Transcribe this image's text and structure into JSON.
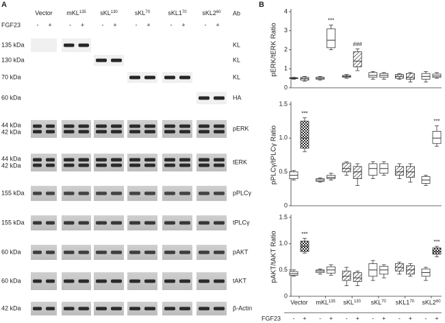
{
  "panel_a": {
    "letter": "A",
    "fgf23": "FGF23",
    "signs": [
      "-",
      "+"
    ],
    "ab": "Ab",
    "lanes": [
      {
        "base": "Vector"
      },
      {
        "base": "mKL",
        "sup": "135"
      },
      {
        "base": "sKL",
        "sup": "130"
      },
      {
        "base": "sKL",
        "sup": "70"
      },
      {
        "base": "sKL1",
        "sup": "70"
      },
      {
        "base": "sKL2",
        "sup": "60"
      }
    ],
    "rows": [
      {
        "kda": [
          "135 kDa"
        ],
        "antibody": "KL"
      },
      {
        "kda": [
          "130 kDa"
        ],
        "antibody": "KL"
      },
      {
        "kda": [
          "70 kDa"
        ],
        "antibody": "KL"
      },
      {
        "kda": [
          "60 kDa"
        ],
        "antibody": "HA"
      },
      {
        "kda": [
          "44 kDa",
          "42 kDa"
        ],
        "antibody": "pERK"
      },
      {
        "kda": [
          "44 kDa",
          "42 kDa"
        ],
        "antibody": "tERK"
      },
      {
        "kda": [
          "155 kDa"
        ],
        "antibody": "pPLCγ"
      },
      {
        "kda": [
          "155 kDa"
        ],
        "antibody": "tPLCγ"
      },
      {
        "kda": [
          "60 kDa"
        ],
        "antibody": "pAKT"
      },
      {
        "kda": [
          "60 kDa"
        ],
        "antibody": "tAKT"
      },
      {
        "kda": [
          "42 kDa"
        ],
        "antibody": "β-Actin"
      }
    ]
  },
  "panel_b": {
    "letter": "B"
  },
  "chart_data": [
    {
      "type": "box",
      "y_label": "pERK/tERK Ratio",
      "ylim": [
        0,
        4
      ],
      "yticks": [
        0,
        1,
        2,
        3,
        4
      ],
      "patterns": [
        [
          "plain",
          "hatch"
        ],
        [
          "plain",
          "plain"
        ],
        [
          "hatch",
          "hatch"
        ],
        [
          "plain",
          "plain"
        ],
        [
          "hatch",
          "hatch"
        ],
        [
          "plain",
          "plain"
        ]
      ],
      "series": [
        {
          "values": [
            [
              0.45,
              0.48,
              0.5,
              0.53,
              0.55
            ],
            [
              0.4,
              0.45,
              0.5,
              0.55,
              0.6
            ],
            [
              0.5,
              0.55,
              0.6,
              0.65,
              0.7
            ],
            [
              0.45,
              0.55,
              0.65,
              0.8,
              0.85
            ],
            [
              0.45,
              0.5,
              0.6,
              0.7,
              0.75
            ],
            [
              0.3,
              0.45,
              0.6,
              0.75,
              0.85
            ]
          ]
        },
        {
          "values": [
            [
              0.35,
              0.4,
              0.48,
              0.55,
              0.6
            ],
            [
              2.0,
              2.1,
              2.5,
              3.1,
              3.3
            ],
            [
              0.9,
              1.1,
              1.4,
              1.9,
              2.05
            ],
            [
              0.45,
              0.55,
              0.65,
              0.75,
              0.8
            ],
            [
              0.3,
              0.45,
              0.55,
              0.75,
              0.8
            ],
            [
              0.5,
              0.55,
              0.62,
              0.72,
              0.8
            ]
          ]
        }
      ],
      "annotations": [
        {
          "category": 1,
          "series": 1,
          "text": "***"
        },
        {
          "category": 2,
          "series": 1,
          "text": "###"
        }
      ]
    },
    {
      "type": "box",
      "y_label": "pPLCγ/tPLCγ Ratio",
      "ylim": [
        0,
        1.5
      ],
      "yticks": [
        0,
        0.5,
        {
          "value": 1,
          "label": "1.0"
        },
        1.5
      ],
      "patterns": [
        [
          "plain",
          "checker"
        ],
        [
          "plain",
          "plain"
        ],
        [
          "hatch",
          "hatch"
        ],
        [
          "plain",
          "plain"
        ],
        [
          "hatch",
          "hatch"
        ],
        [
          "plain",
          "plain"
        ]
      ],
      "series": [
        {
          "values": [
            [
              0.38,
              0.4,
              0.45,
              0.5,
              0.52
            ],
            [
              0.35,
              0.36,
              0.38,
              0.4,
              0.41
            ],
            [
              0.45,
              0.5,
              0.55,
              0.63,
              0.65
            ],
            [
              0.4,
              0.45,
              0.55,
              0.62,
              0.65
            ],
            [
              0.4,
              0.45,
              0.5,
              0.58,
              0.62
            ],
            [
              0.3,
              0.33,
              0.38,
              0.43,
              0.45
            ]
          ]
        },
        {
          "values": [
            [
              0.8,
              0.85,
              1.0,
              1.25,
              1.3
            ],
            [
              0.38,
              0.4,
              0.42,
              0.45,
              0.48
            ],
            [
              0.3,
              0.4,
              0.5,
              0.58,
              0.62
            ],
            [
              0.45,
              0.48,
              0.55,
              0.62,
              0.65
            ],
            [
              0.35,
              0.42,
              0.5,
              0.58,
              0.62
            ],
            [
              0.88,
              0.92,
              1.0,
              1.1,
              1.18
            ]
          ]
        }
      ],
      "annotations": [
        {
          "category": 0,
          "series": 1,
          "text": "***"
        },
        {
          "category": 5,
          "series": 1,
          "text": "***"
        }
      ]
    },
    {
      "type": "box",
      "y_label": "pAKT/tAKT Ratio",
      "ylim": [
        0,
        1.5
      ],
      "yticks": [
        0,
        0.5,
        {
          "value": 1,
          "label": "1.0"
        },
        1.5
      ],
      "patterns": [
        [
          "plain",
          "checker"
        ],
        [
          "plain",
          "plain"
        ],
        [
          "hatch",
          "hatch"
        ],
        [
          "plain",
          "plain"
        ],
        [
          "hatch",
          "hatch"
        ],
        [
          "plain",
          "checker"
        ]
      ],
      "categories": [
        {
          "base": "Vector"
        },
        {
          "base": "mKL",
          "sup": "135"
        },
        {
          "base": "sKL",
          "sup": "130"
        },
        {
          "base": "sKL",
          "sup": "70"
        },
        {
          "base": "sKL1",
          "sup": "70"
        },
        {
          "base": "sKL2",
          "sup": "60"
        }
      ],
      "x_label": "FGF23",
      "series": [
        {
          "name": "-",
          "values": [
            [
              0.38,
              0.4,
              0.43,
              0.47,
              0.5
            ],
            [
              0.42,
              0.45,
              0.48,
              0.5,
              0.52
            ],
            [
              0.2,
              0.3,
              0.38,
              0.48,
              0.55
            ],
            [
              0.3,
              0.38,
              0.5,
              0.62,
              0.68
            ],
            [
              0.42,
              0.48,
              0.55,
              0.62,
              0.65
            ],
            [
              0.3,
              0.38,
              0.45,
              0.52,
              0.55
            ]
          ]
        },
        {
          "name": "+",
          "values": [
            [
              0.82,
              0.85,
              0.95,
              1.05,
              1.1
            ],
            [
              0.4,
              0.44,
              0.5,
              0.56,
              0.6
            ],
            [
              0.2,
              0.28,
              0.35,
              0.45,
              0.48
            ],
            [
              0.35,
              0.42,
              0.5,
              0.57,
              0.6
            ],
            [
              0.38,
              0.42,
              0.5,
              0.58,
              0.62
            ],
            [
              0.75,
              0.8,
              0.85,
              0.92,
              0.95
            ]
          ]
        }
      ],
      "annotations": [
        {
          "category": 0,
          "series": 1,
          "text": "***"
        },
        {
          "category": 5,
          "series": 1,
          "text": "***"
        }
      ]
    }
  ]
}
